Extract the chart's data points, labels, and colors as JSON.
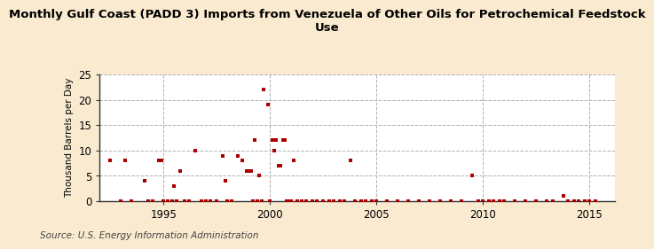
{
  "title": "Monthly Gulf Coast (PADD 3) Imports from Venezuela of Other Oils for Petrochemical Feedstock\nUse",
  "ylabel": "Thousand Barrels per Day",
  "source": "Source: U.S. Energy Information Administration",
  "background_color": "#faebd0",
  "plot_bg_color": "#ffffff",
  "marker_color": "#aa0000",
  "xlim": [
    1992.0,
    2016.2
  ],
  "ylim": [
    0,
    25
  ],
  "yticks": [
    0,
    5,
    10,
    15,
    20,
    25
  ],
  "xticks": [
    1995,
    2000,
    2005,
    2010,
    2015
  ],
  "data_points": [
    [
      1992.5,
      8
    ],
    [
      1993.2,
      8
    ],
    [
      1994.1,
      4
    ],
    [
      1994.8,
      8
    ],
    [
      1994.9,
      8
    ],
    [
      1995.5,
      3
    ],
    [
      1995.8,
      6
    ],
    [
      1996.5,
      10
    ],
    [
      1997.8,
      9
    ],
    [
      1997.9,
      4
    ],
    [
      1998.5,
      9
    ],
    [
      1998.7,
      8
    ],
    [
      1998.9,
      6
    ],
    [
      1999.0,
      6
    ],
    [
      1999.1,
      6
    ],
    [
      1999.3,
      12
    ],
    [
      1999.5,
      5
    ],
    [
      1999.7,
      22
    ],
    [
      1999.9,
      19
    ],
    [
      2000.1,
      12
    ],
    [
      2000.2,
      10
    ],
    [
      2000.3,
      12
    ],
    [
      2000.4,
      7
    ],
    [
      2000.5,
      7
    ],
    [
      2000.6,
      12
    ],
    [
      2000.7,
      12
    ],
    [
      2001.1,
      8
    ],
    [
      2003.8,
      8
    ],
    [
      2009.5,
      5
    ],
    [
      2013.8,
      1
    ],
    [
      1993.0,
      0
    ],
    [
      1993.5,
      0
    ],
    [
      1994.3,
      0
    ],
    [
      1994.5,
      0
    ],
    [
      1995.0,
      0
    ],
    [
      1995.2,
      0
    ],
    [
      1995.4,
      0
    ],
    [
      1995.6,
      0
    ],
    [
      1996.0,
      0
    ],
    [
      1996.2,
      0
    ],
    [
      1996.8,
      0
    ],
    [
      1997.0,
      0
    ],
    [
      1997.2,
      0
    ],
    [
      1997.5,
      0
    ],
    [
      1998.0,
      0
    ],
    [
      1998.2,
      0
    ],
    [
      1999.2,
      0
    ],
    [
      1999.4,
      0
    ],
    [
      1999.6,
      0
    ],
    [
      2000.0,
      0
    ],
    [
      2000.8,
      0
    ],
    [
      2000.9,
      0
    ],
    [
      2001.0,
      0
    ],
    [
      2001.3,
      0
    ],
    [
      2001.5,
      0
    ],
    [
      2001.7,
      0
    ],
    [
      2002.0,
      0
    ],
    [
      2002.2,
      0
    ],
    [
      2002.5,
      0
    ],
    [
      2002.8,
      0
    ],
    [
      2003.0,
      0
    ],
    [
      2003.3,
      0
    ],
    [
      2003.5,
      0
    ],
    [
      2004.0,
      0
    ],
    [
      2004.3,
      0
    ],
    [
      2004.5,
      0
    ],
    [
      2004.8,
      0
    ],
    [
      2005.0,
      0
    ],
    [
      2005.5,
      0
    ],
    [
      2006.0,
      0
    ],
    [
      2006.5,
      0
    ],
    [
      2007.0,
      0
    ],
    [
      2007.5,
      0
    ],
    [
      2008.0,
      0
    ],
    [
      2008.5,
      0
    ],
    [
      2009.0,
      0
    ],
    [
      2009.8,
      0
    ],
    [
      2010.0,
      0
    ],
    [
      2010.3,
      0
    ],
    [
      2010.5,
      0
    ],
    [
      2010.8,
      0
    ],
    [
      2011.0,
      0
    ],
    [
      2011.5,
      0
    ],
    [
      2012.0,
      0
    ],
    [
      2012.5,
      0
    ],
    [
      2013.0,
      0
    ],
    [
      2013.3,
      0
    ],
    [
      2014.0,
      0
    ],
    [
      2014.3,
      0
    ],
    [
      2014.5,
      0
    ],
    [
      2014.8,
      0
    ],
    [
      2015.0,
      0
    ],
    [
      2015.3,
      0
    ]
  ]
}
